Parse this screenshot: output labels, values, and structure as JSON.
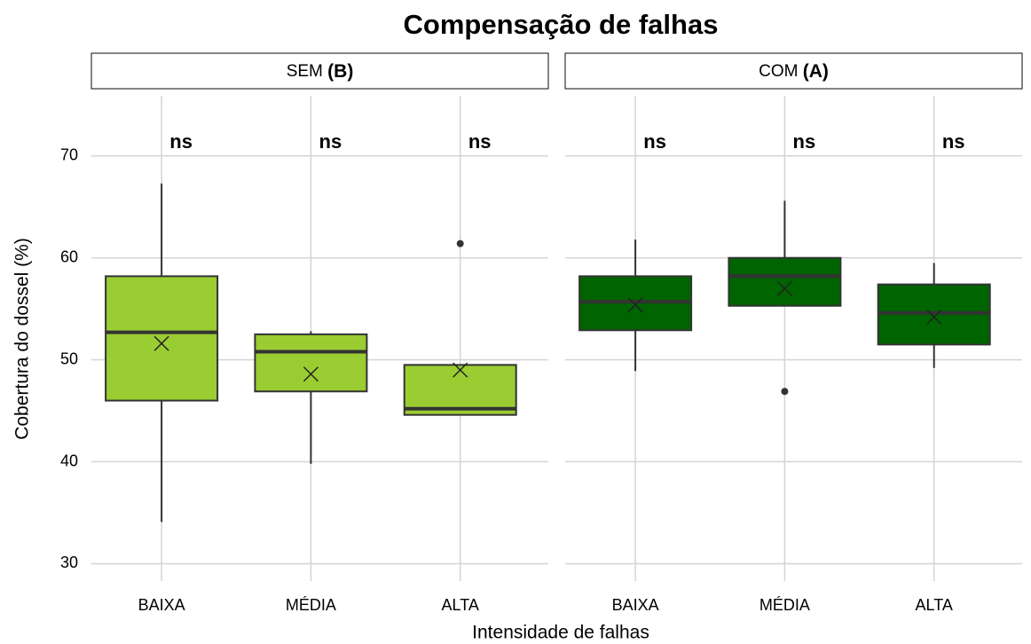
{
  "chart_data": {
    "type": "box",
    "title": "Compensação de falhas",
    "xlabel": "Intensidade de falhas",
    "ylabel": "Cobertura do dossel (%)",
    "ylim": [
      28.3,
      75.9
    ],
    "yticks": [
      30,
      40,
      50,
      60,
      70
    ],
    "grid": true,
    "panels": [
      {
        "strip": "SEM",
        "strip_bold": "(B)",
        "color": "#9acd32",
        "categories": [
          "BAIXA",
          "MÉDIA",
          "ALTA"
        ],
        "boxes": [
          {
            "whisker_low": 34.1,
            "q1": 46.0,
            "median": 52.7,
            "q3": 58.2,
            "whisker_high": 67.3,
            "mean": 51.6,
            "outliers": [],
            "annotation": "ns"
          },
          {
            "whisker_low": 39.8,
            "q1": 46.9,
            "median": 50.8,
            "q3": 52.5,
            "whisker_high": 52.8,
            "mean": 48.6,
            "outliers": [],
            "annotation": "ns"
          },
          {
            "whisker_low": 44.6,
            "q1": 44.6,
            "median": 45.2,
            "q3": 49.5,
            "whisker_high": 49.5,
            "mean": 49.0,
            "outliers": [
              61.4
            ],
            "annotation": "ns"
          }
        ]
      },
      {
        "strip": "COM",
        "strip_bold": "(A)",
        "color": "#006400",
        "categories": [
          "BAIXA",
          "MÉDIA",
          "ALTA"
        ],
        "boxes": [
          {
            "whisker_low": 48.9,
            "q1": 52.9,
            "median": 55.7,
            "q3": 58.2,
            "whisker_high": 61.8,
            "mean": 55.4,
            "outliers": [],
            "annotation": "ns"
          },
          {
            "whisker_low": 55.3,
            "q1": 55.3,
            "median": 58.2,
            "q3": 60.0,
            "whisker_high": 65.6,
            "mean": 57.0,
            "outliers": [
              46.9
            ],
            "annotation": "ns"
          },
          {
            "whisker_low": 49.2,
            "q1": 51.5,
            "median": 54.6,
            "q3": 57.4,
            "whisker_high": 59.5,
            "mean": 54.2,
            "outliers": [],
            "annotation": "ns"
          }
        ]
      }
    ]
  }
}
